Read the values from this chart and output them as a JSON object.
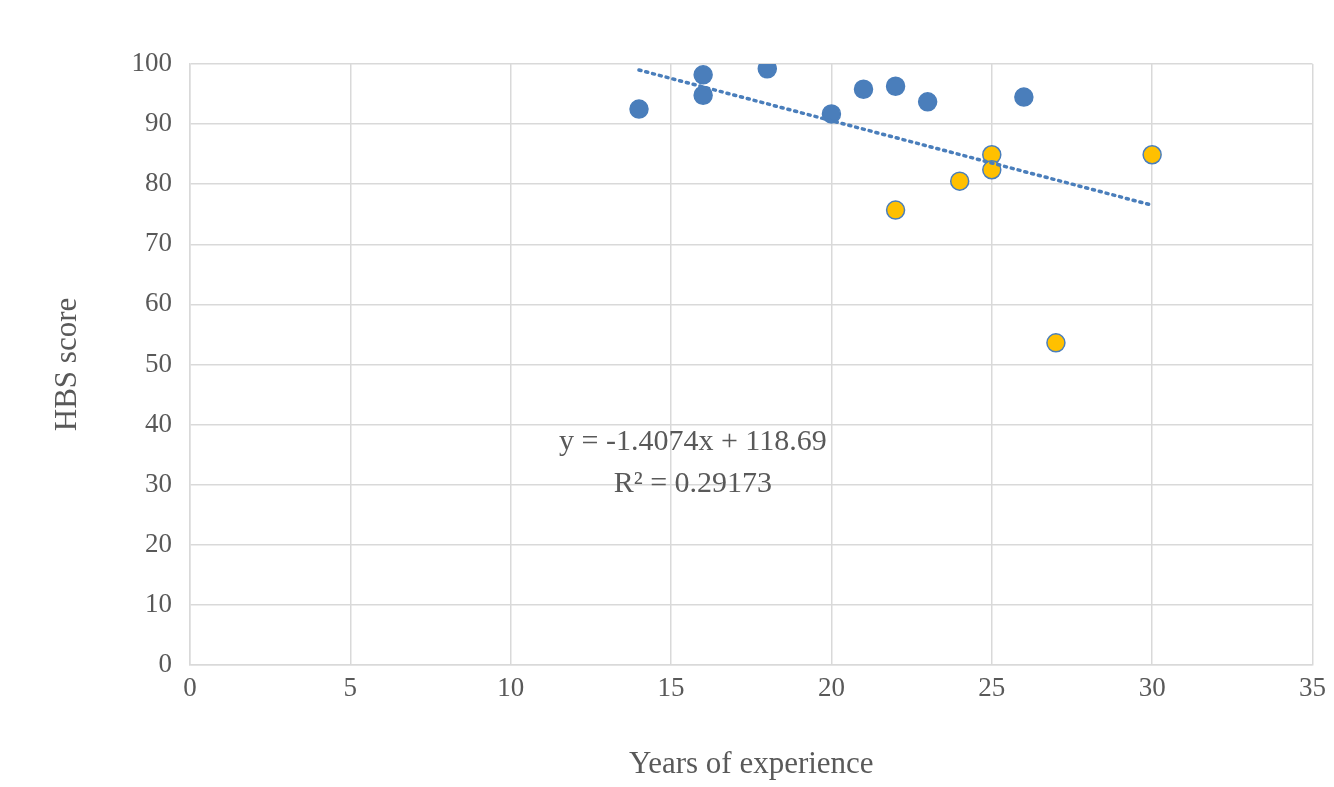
{
  "chart_data": {
    "type": "scatter",
    "xlabel": "Years of experience",
    "ylabel": "HBS score",
    "annotations": [
      "y = -1.4074x + 118.69",
      "R² = 0.29173"
    ],
    "series": [
      {
        "color": "#4a7ebb",
        "x": [
          14,
          16,
          16,
          18,
          20,
          21,
          22,
          23,
          26
        ],
        "values": [
          92.5,
          98.2,
          94.8,
          99.2,
          91.7,
          95.8,
          96.3,
          93.7,
          94.5
        ]
      },
      {
        "color": "#ffc000",
        "x": [
          22,
          24,
          25,
          25,
          27,
          30
        ],
        "values": [
          75.7,
          80.5,
          84.9,
          82.4,
          53.6,
          84.9
        ]
      },
      {
        "type": "line",
        "marker": "none",
        "line_style": "dotted",
        "color": "#4a7ebb",
        "x": [
          14,
          30
        ],
        "values": [
          99.0,
          76.5
        ]
      }
    ],
    "marker": "circle",
    "grid": true,
    "xlim": [
      0,
      35
    ],
    "xticks": [
      0,
      5,
      10,
      15,
      20,
      25,
      30,
      35
    ],
    "ylim": [
      0,
      100
    ],
    "yticks": [
      0,
      10,
      20,
      30,
      40,
      50,
      60,
      70,
      80,
      90,
      100
    ]
  }
}
